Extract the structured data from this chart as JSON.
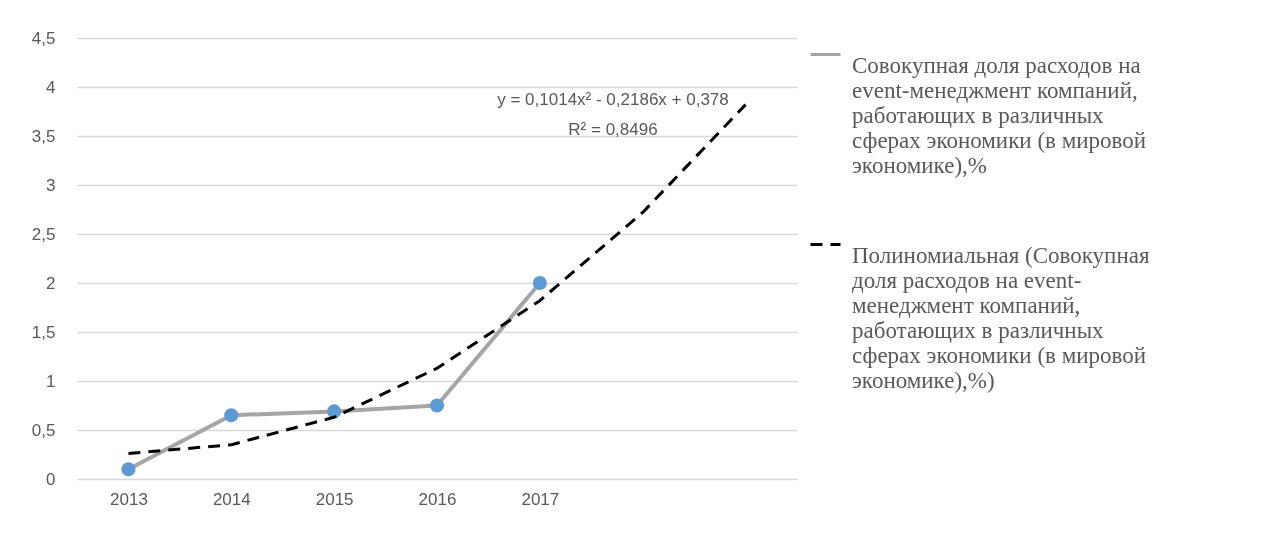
{
  "chart_data": {
    "type": "line",
    "x": [
      2013,
      2014,
      2015,
      2016,
      2017
    ],
    "xlim": [
      2012.5,
      2019.5
    ],
    "xticks": [
      2013,
      2014,
      2015,
      2016,
      2017
    ],
    "ylim": [
      0,
      4.5
    ],
    "yticks": [
      0,
      {
        "value": 0.5,
        "label": "0,5"
      },
      1,
      {
        "value": 1.5,
        "label": "1,5"
      },
      2,
      {
        "value": 2.5,
        "label": "2,5"
      },
      3,
      {
        "value": 3.5,
        "label": "3,5"
      },
      4,
      {
        "value": 4.5,
        "label": "4,5"
      }
    ],
    "grid": "y",
    "legend": "right",
    "marker": "circle",
    "annotations": [
      "y = 0,1014x² - 0,2186x + 0,378",
      "R² = 0,8496"
    ],
    "series": [
      {
        "name": "Совокупная доля расходов на event-менеджмент компаний, работающих в различных сферах экономики (в мировой экономике),%",
        "color": "#a5a5a5",
        "colors": [
          "#5b9bd5",
          "#5b9bd5",
          "#5b9bd5",
          "#5b9bd5",
          "#5b9bd5"
        ],
        "values": [
          0.1,
          0.65,
          0.69,
          0.75,
          2.0
        ]
      },
      {
        "name": "Полиномиальная (Совокупная доля расходов на event-менеджмент компаний, работающих в различных сферах экономики (в мировой экономике),%)",
        "type": "line",
        "color": "#000000",
        "line_style": "dashed",
        "marker": "none",
        "x": [
          2013,
          2014,
          2015,
          2016,
          2017,
          2018,
          2019
        ],
        "values": [
          0.26,
          0.35,
          0.63,
          1.13,
          1.82,
          2.72,
          3.82
        ]
      }
    ]
  }
}
